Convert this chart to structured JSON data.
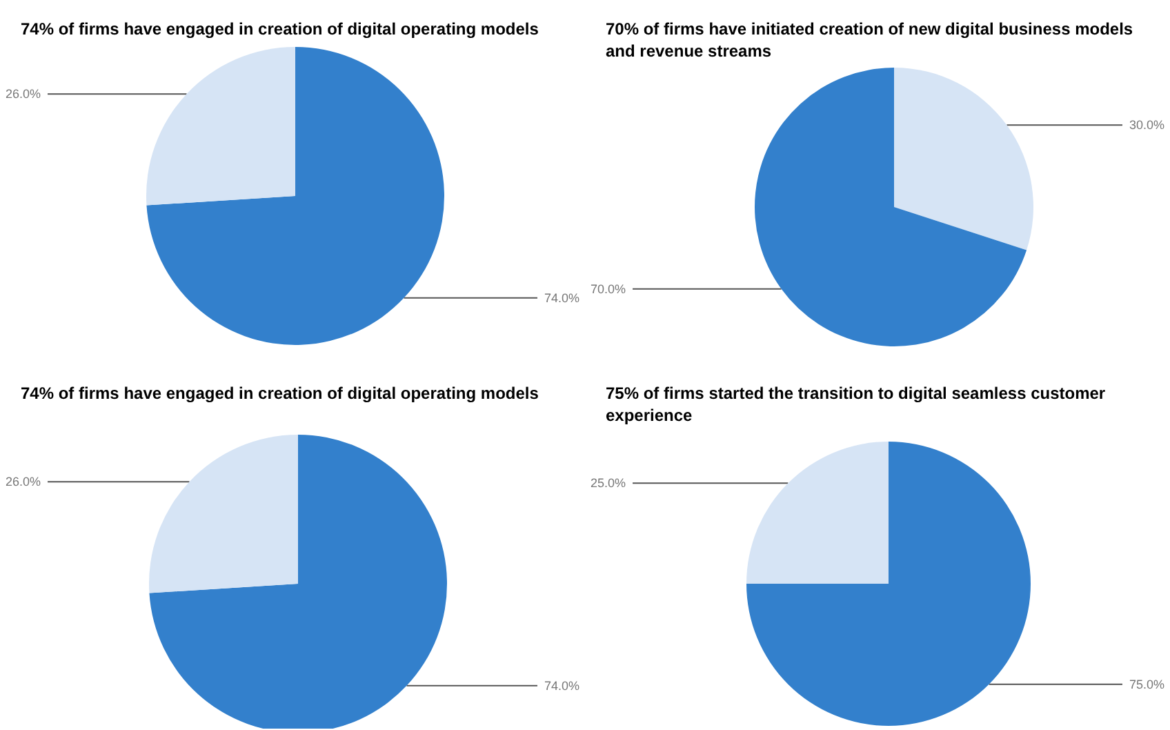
{
  "chart_data": [
    {
      "type": "pie",
      "title": "74% of firms have engaged in creation of digital operating models",
      "categories": [
        null,
        null
      ],
      "values": [
        74,
        26
      ],
      "colors": [
        "#3380cc",
        "#d6e4f5"
      ],
      "value_labels": [
        "74.0%",
        "26.0%"
      ]
    },
    {
      "type": "pie",
      "title": "70% of firms have initiated creation of new digital business models and revenue streams",
      "categories": [
        null,
        null
      ],
      "values": [
        30,
        70
      ],
      "colors": [
        "#d6e4f5",
        "#3380cc"
      ],
      "value_labels": [
        "30.0%",
        "70.0%"
      ]
    },
    {
      "type": "pie",
      "title": "74% of firms have engaged in creation of digital operating models",
      "categories": [
        null,
        null
      ],
      "values": [
        74,
        26
      ],
      "colors": [
        "#3380cc",
        "#d6e4f5"
      ],
      "value_labels": [
        "74.0%",
        "26.0%"
      ]
    },
    {
      "type": "pie",
      "title": "75% of firms started the transition to digital seamless customer experience",
      "categories": [
        null,
        null
      ],
      "values": [
        75,
        25
      ],
      "colors": [
        "#3380cc",
        "#d6e4f5"
      ],
      "value_labels": [
        "75.0%",
        "25.0%"
      ]
    }
  ]
}
